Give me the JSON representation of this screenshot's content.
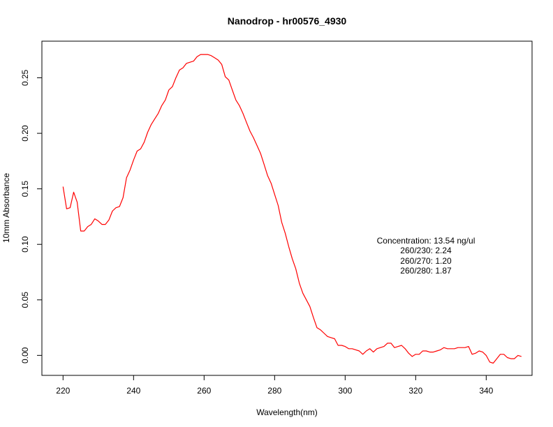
{
  "chart_data": {
    "type": "line",
    "title": "Nanodrop - hr00576_4930",
    "xlabel": "Wavelength(nm)",
    "ylabel": "10mm Absorbance",
    "xlim": [
      214,
      353
    ],
    "ylim": [
      -0.018,
      0.283
    ],
    "xticks": [
      "220",
      "240",
      "260",
      "280",
      "300",
      "320",
      "340"
    ],
    "yticks": [
      "0.00",
      "0.05",
      "0.10",
      "0.15",
      "0.20",
      "0.25"
    ],
    "grid": false,
    "series": [
      {
        "color": "#ff0000",
        "x": [
          220,
          221,
          222,
          223,
          224,
          225,
          226,
          227,
          228,
          229,
          230,
          231,
          232,
          233,
          234,
          235,
          236,
          237,
          238,
          239,
          240,
          241,
          242,
          243,
          244,
          245,
          246,
          247,
          248,
          249,
          250,
          251,
          252,
          253,
          254,
          255,
          256,
          257,
          258,
          259,
          260,
          261,
          262,
          263,
          264,
          265,
          266,
          267,
          268,
          269,
          270,
          271,
          272,
          273,
          274,
          275,
          276,
          277,
          278,
          279,
          280,
          281,
          282,
          283,
          284,
          285,
          286,
          287,
          288,
          289,
          290,
          291,
          292,
          293,
          294,
          295,
          296,
          297,
          298,
          299,
          300,
          301,
          302,
          303,
          304,
          305,
          306,
          307,
          308,
          309,
          310,
          311,
          312,
          313,
          314,
          315,
          316,
          317,
          318,
          319,
          320,
          321,
          322,
          323,
          324,
          325,
          326,
          327,
          328,
          329,
          330,
          331,
          332,
          333,
          334,
          335,
          336,
          337,
          338,
          339,
          340,
          341,
          342,
          343,
          344,
          345,
          346,
          347,
          348,
          349,
          350
        ],
        "y": [
          0.152,
          0.132,
          0.133,
          0.147,
          0.138,
          0.112,
          0.112,
          0.116,
          0.118,
          0.123,
          0.121,
          0.118,
          0.118,
          0.122,
          0.13,
          0.133,
          0.134,
          0.142,
          0.16,
          0.167,
          0.176,
          0.184,
          0.186,
          0.192,
          0.201,
          0.208,
          0.213,
          0.218,
          0.225,
          0.23,
          0.239,
          0.242,
          0.25,
          0.257,
          0.259,
          0.263,
          0.264,
          0.265,
          0.269,
          0.271,
          0.271,
          0.271,
          0.27,
          0.268,
          0.266,
          0.262,
          0.251,
          0.248,
          0.239,
          0.23,
          0.225,
          0.218,
          0.21,
          0.202,
          0.196,
          0.189,
          0.182,
          0.172,
          0.162,
          0.155,
          0.145,
          0.135,
          0.12,
          0.11,
          0.098,
          0.087,
          0.078,
          0.065,
          0.056,
          0.05,
          0.044,
          0.034,
          0.025,
          0.023,
          0.02,
          0.017,
          0.016,
          0.015,
          0.009,
          0.009,
          0.008,
          0.006,
          0.006,
          0.005,
          0.004,
          0.001,
          0.004,
          0.006,
          0.003,
          0.006,
          0.007,
          0.008,
          0.011,
          0.011,
          0.007,
          0.008,
          0.009,
          0.006,
          0.002,
          -0.001,
          0.001,
          0.001,
          0.004,
          0.004,
          0.003,
          0.003,
          0.004,
          0.005,
          0.007,
          0.006,
          0.006,
          0.006,
          0.007,
          0.007,
          0.007,
          0.008,
          0.001,
          0.002,
          0.004,
          0.003,
          0.0,
          -0.006,
          -0.007,
          -0.003,
          0.001,
          0.001,
          -0.002,
          -0.003,
          -0.003,
          0.0,
          -0.001
        ]
      }
    ],
    "annotations": [
      "Concentration: 13.54 ng/ul",
      "260/230: 2.24",
      "260/270: 1.20",
      "260/280: 1.87"
    ]
  }
}
